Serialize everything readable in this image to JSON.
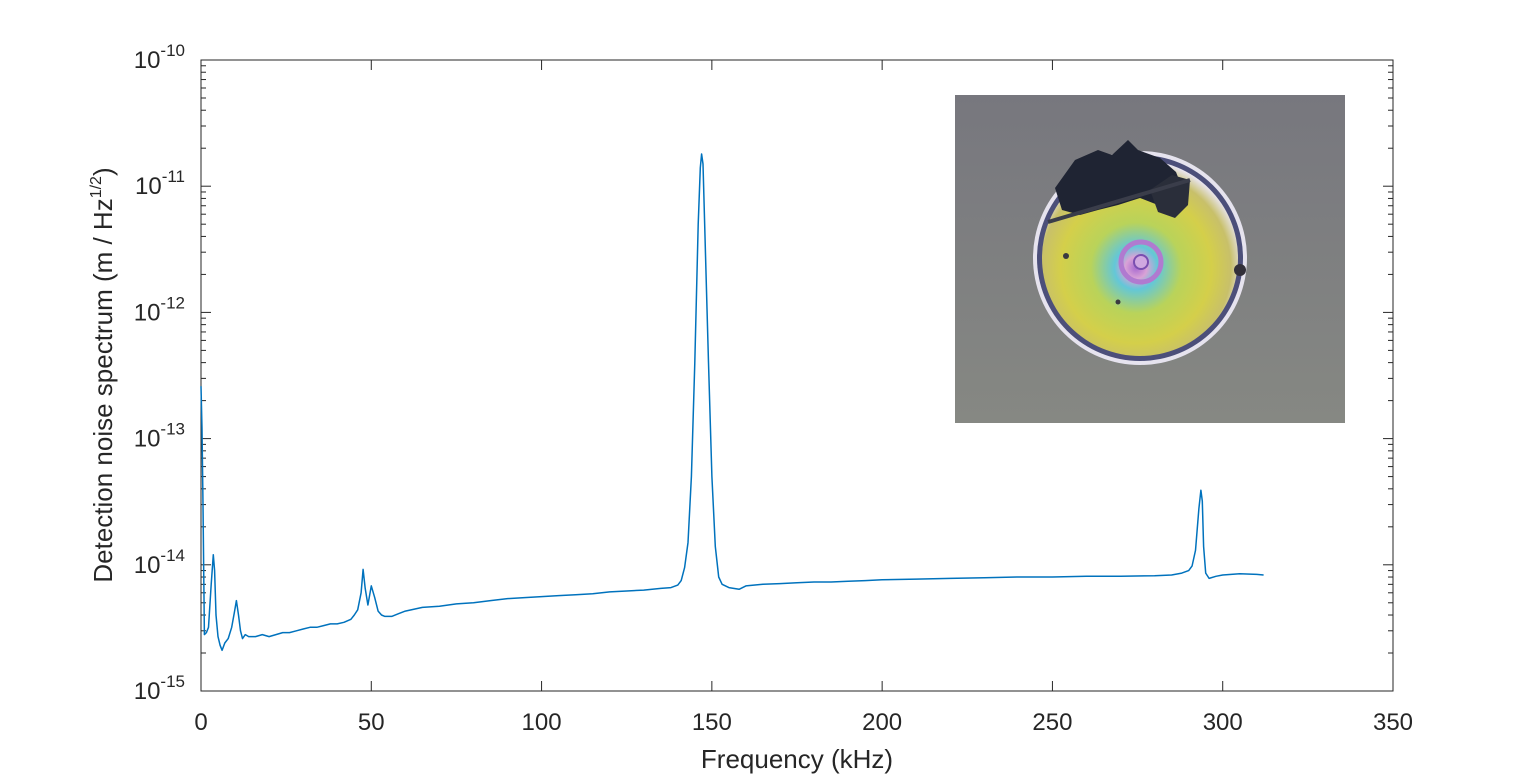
{
  "chart_data": {
    "type": "line",
    "xlabel": "Frequency (kHz)",
    "ylabel": {
      "main": "Detection noise spectrum (m / Hz",
      "sup": "1/2",
      "close": ")"
    },
    "xlim": [
      0,
      350
    ],
    "ylim": [
      1e-15,
      1e-10
    ],
    "yscale": "log",
    "grid": false,
    "box": true,
    "line_color": "#0072BD",
    "x_ticks": [
      0,
      50,
      100,
      150,
      200,
      250,
      300,
      350
    ],
    "x_tick_labels": [
      "0",
      "50",
      "100",
      "150",
      "200",
      "250",
      "300",
      "350"
    ],
    "y_ticks": [
      {
        "base": "10",
        "exp": "-10",
        "value": 1e-10
      },
      {
        "base": "10",
        "exp": "-11",
        "value": 1e-11
      },
      {
        "base": "10",
        "exp": "-12",
        "value": 1e-12
      },
      {
        "base": "10",
        "exp": "-13",
        "value": 1e-13
      },
      {
        "base": "10",
        "exp": "-14",
        "value": 1e-14
      },
      {
        "base": "10",
        "exp": "-15",
        "value": 1e-15
      }
    ],
    "series": [
      {
        "x": [
          0,
          0.3,
          0.6,
          1.0,
          1.6,
          2.2,
          3.0,
          3.6,
          4.0,
          4.4,
          5.0,
          5.6,
          6.2,
          7.0,
          8.0,
          9.0,
          9.8,
          10.4,
          11.0,
          11.6,
          12.2,
          13.0,
          14.0,
          16,
          18,
          20,
          22,
          24,
          26,
          28,
          30,
          32,
          34,
          36,
          38,
          40,
          42,
          44,
          45,
          46,
          47,
          47.6,
          48.2,
          49,
          50,
          51,
          52,
          53,
          54,
          56,
          58,
          60,
          65,
          70,
          75,
          80,
          85,
          90,
          95,
          100,
          105,
          110,
          115,
          120,
          125,
          130,
          135,
          138,
          140,
          141,
          142,
          143,
          144,
          145,
          146,
          146.6,
          147,
          147.4,
          148,
          149,
          150,
          151,
          152,
          153,
          155,
          158,
          160,
          165,
          170,
          175,
          180,
          185,
          190,
          195,
          200,
          210,
          220,
          230,
          240,
          250,
          260,
          270,
          280,
          285,
          288,
          290,
          291,
          292,
          293,
          293.6,
          294,
          294.4,
          295,
          296,
          298,
          300,
          305,
          310,
          312
        ],
        "y": [
          2.6e-13,
          1.2e-13,
          3e-14,
          2.8e-15,
          2.9e-15,
          3.2e-15,
          7e-15,
          1.2e-14,
          9e-15,
          4e-15,
          2.7e-15,
          2.3e-15,
          2.1e-15,
          2.4e-15,
          2.6e-15,
          3.2e-15,
          4.2e-15,
          5.2e-15,
          4e-15,
          3e-15,
          2.6e-15,
          2.8e-15,
          2.7e-15,
          2.7e-15,
          2.8e-15,
          2.7e-15,
          2.8e-15,
          2.9e-15,
          2.9e-15,
          3e-15,
          3.1e-15,
          3.2e-15,
          3.2e-15,
          3.3e-15,
          3.4e-15,
          3.4e-15,
          3.5e-15,
          3.7e-15,
          4e-15,
          4.4e-15,
          6e-15,
          9.2e-15,
          6.5e-15,
          4.8e-15,
          6.8e-15,
          5.5e-15,
          4.3e-15,
          4e-15,
          3.9e-15,
          3.9e-15,
          4.1e-15,
          4.3e-15,
          4.6e-15,
          4.7e-15,
          4.9e-15,
          5e-15,
          5.2e-15,
          5.4e-15,
          5.5e-15,
          5.6e-15,
          5.7e-15,
          5.8e-15,
          5.9e-15,
          6.1e-15,
          6.2e-15,
          6.3e-15,
          6.5e-15,
          6.6e-15,
          6.9e-15,
          7.5e-15,
          9.5e-15,
          1.5e-14,
          5e-14,
          4e-13,
          5e-12,
          1.4e-11,
          1.8e-11,
          1.5e-11,
          4e-12,
          4e-13,
          5e-14,
          1.4e-14,
          8e-15,
          7e-15,
          6.6e-15,
          6.4e-15,
          6.8e-15,
          7e-15,
          7.1e-15,
          7.2e-15,
          7.3e-15,
          7.3e-15,
          7.4e-15,
          7.5e-15,
          7.6e-15,
          7.7e-15,
          7.8e-15,
          7.9e-15,
          8e-15,
          8e-15,
          8.1e-15,
          8.1e-15,
          8.2e-15,
          8.3e-15,
          8.6e-15,
          9e-15,
          9.8e-15,
          1.3e-14,
          2.8e-14,
          3.9e-14,
          3.2e-14,
          1.4e-14,
          8.6e-15,
          7.8e-15,
          8.1e-15,
          8.3e-15,
          8.5e-15,
          8.4e-15,
          8.3e-15
        ]
      }
    ],
    "inset": {
      "content": "photo",
      "colors": {
        "background": "#7b7b80",
        "disk_edge": "#e9e6f0",
        "disk_yellow": "#c9cf4b",
        "disk_cyan": "#49c1d8",
        "disk_purple": "#9d63c6",
        "debris": "#1e2330"
      }
    }
  }
}
